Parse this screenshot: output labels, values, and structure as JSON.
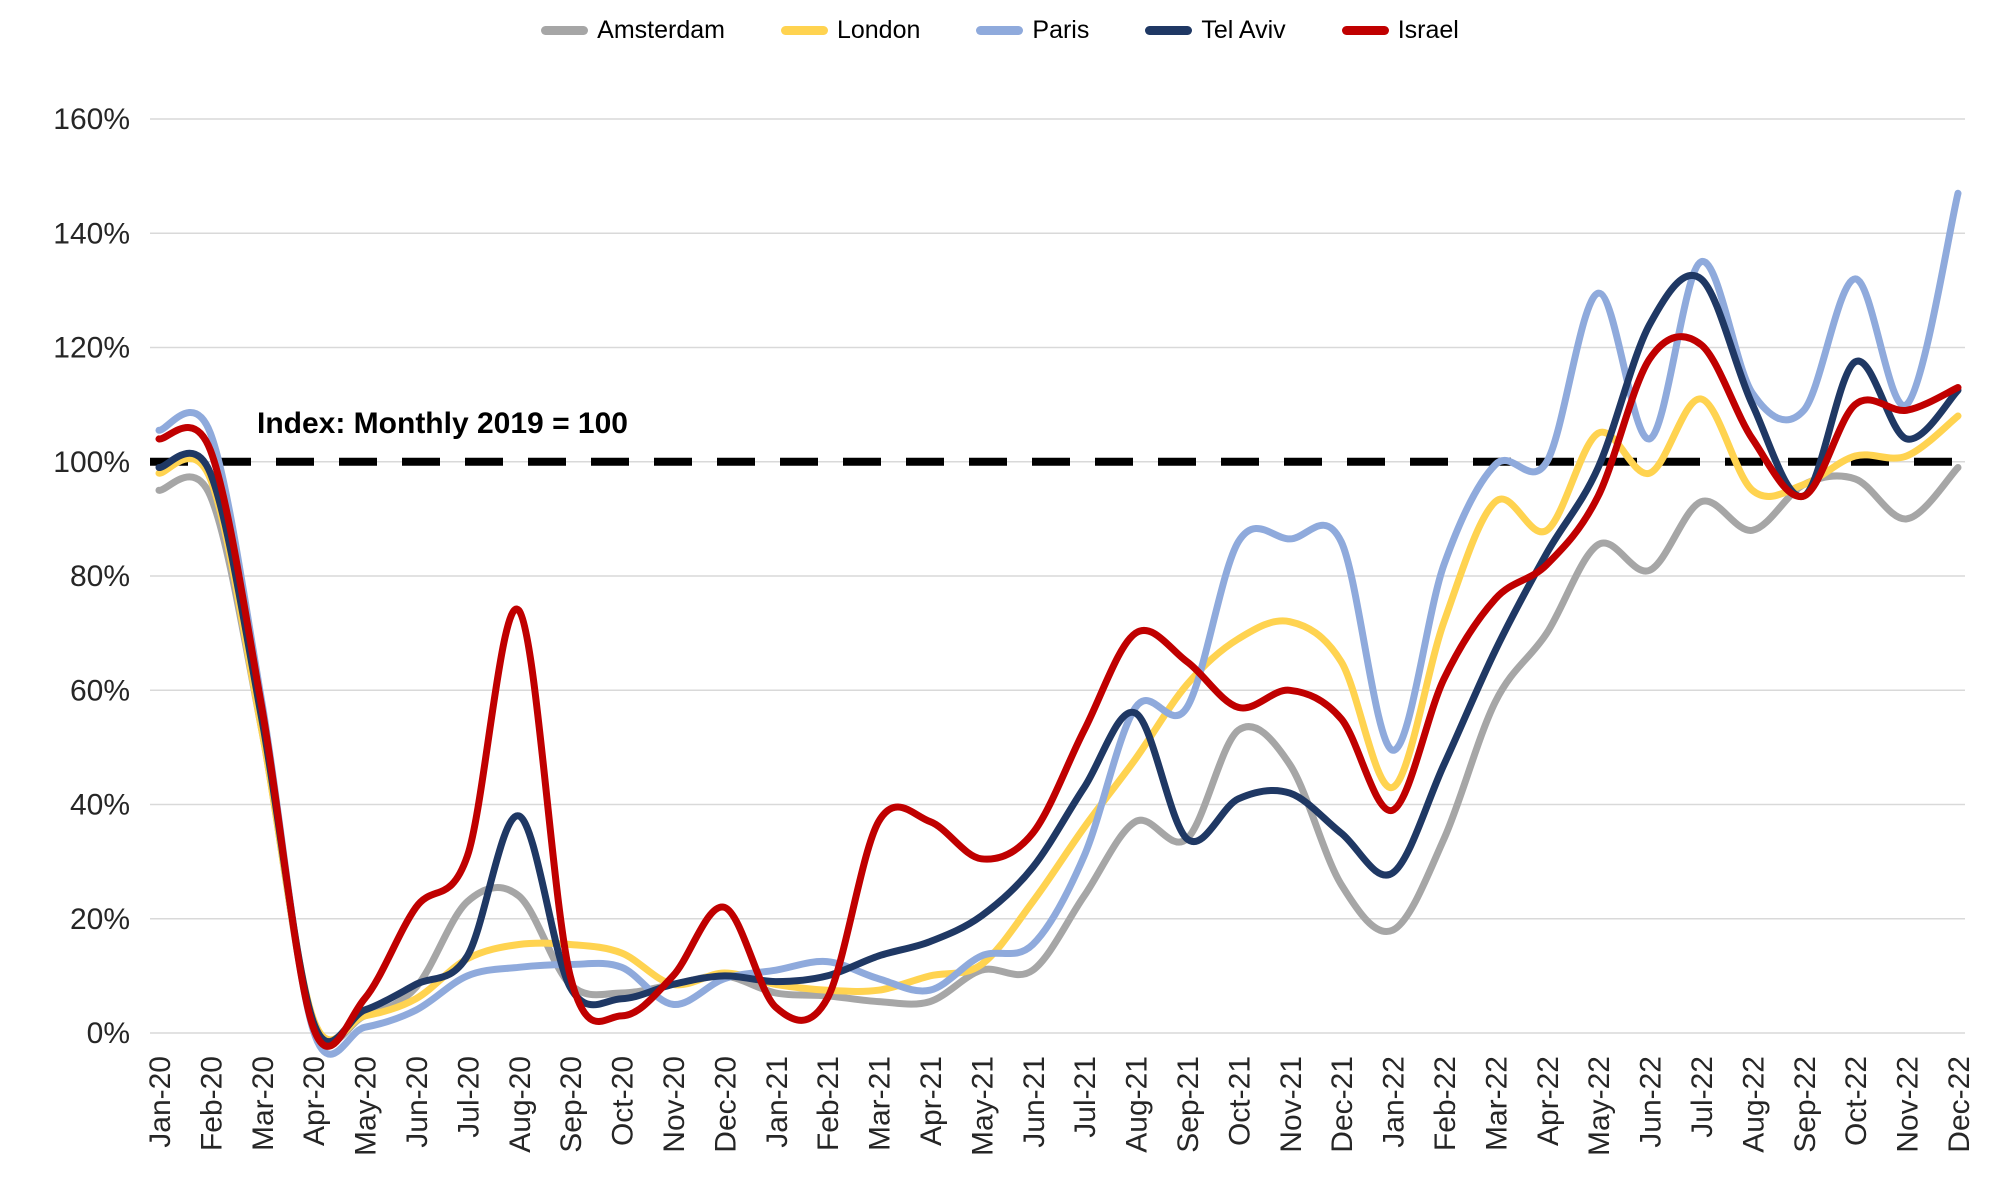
{
  "chart_data": {
    "type": "line",
    "title": "",
    "annotation": "Index: Monthly 2019 = 100",
    "legend_position": "top",
    "grid": true,
    "x_categories": [
      "Jan-20",
      "Feb-20",
      "Mar-20",
      "Apr-20",
      "May-20",
      "Jun-20",
      "Jul-20",
      "Aug-20",
      "Sep-20",
      "Oct-20",
      "Nov-20",
      "Dec-20",
      "Jan-21",
      "Feb-21",
      "Mar-21",
      "Apr-21",
      "May-21",
      "Jun-21",
      "Jul-21",
      "Aug-21",
      "Sep-21",
      "Oct-21",
      "Nov-21",
      "Dec-21",
      "Jan-22",
      "Feb-22",
      "Mar-22",
      "Apr-22",
      "May-22",
      "Jun-22",
      "Jul-22",
      "Aug-22",
      "Sep-22",
      "Oct-22",
      "Nov-22",
      "Dec-22"
    ],
    "y_axis": {
      "min": 0,
      "max": 160,
      "step": 20,
      "tick_labels": [
        "0%",
        "20%",
        "40%",
        "60%",
        "80%",
        "100%",
        "120%",
        "140%",
        "160%"
      ]
    },
    "reference_line": {
      "value": 100,
      "style": "dashed",
      "color": "#000000"
    },
    "series": [
      {
        "name": "Amsterdam",
        "color": "#A6A6A6",
        "values": [
          95,
          94,
          53,
          2,
          3,
          8,
          23,
          24,
          8.5,
          7,
          8.5,
          10,
          7,
          6.5,
          5.5,
          5.5,
          11,
          11,
          24,
          37,
          34,
          53,
          47,
          26,
          18,
          34,
          58,
          70,
          85.5,
          81,
          93,
          88,
          96,
          97,
          90,
          99
        ]
      },
      {
        "name": "London",
        "color": "#FFD350",
        "values": [
          98,
          97,
          53,
          2.5,
          3,
          6,
          13,
          15.5,
          15.5,
          14,
          8.5,
          10.5,
          8.5,
          7.5,
          7.5,
          10,
          12,
          23,
          36,
          48,
          61,
          69,
          72,
          65,
          43,
          72,
          93,
          88,
          105,
          98,
          111,
          95,
          96,
          101,
          101,
          108
        ]
      },
      {
        "name": "Paris",
        "color": "#8FAADC",
        "values": [
          105.5,
          105,
          58,
          0.5,
          1,
          4,
          10,
          11.5,
          12,
          11.5,
          5,
          9.5,
          11,
          12.5,
          9.5,
          7.5,
          13.5,
          15.5,
          31,
          57,
          57,
          86,
          86.5,
          86,
          49.5,
          82,
          99.5,
          100,
          129.5,
          104,
          135,
          112,
          109,
          132,
          110,
          147
        ]
      },
      {
        "name": "Tel Aviv",
        "color": "#1F3864",
        "values": [
          99,
          98,
          55,
          2,
          4,
          8.5,
          13.5,
          38,
          8,
          6,
          8.5,
          10,
          9,
          10,
          13.5,
          16,
          20.5,
          29,
          43,
          56,
          34,
          41,
          42,
          35,
          28,
          47,
          67,
          84,
          99,
          124,
          132,
          110,
          94,
          117.5,
          104,
          112.5
        ]
      },
      {
        "name": "Israel",
        "color": "#C00000",
        "values": [
          104,
          102,
          57,
          1,
          6,
          22,
          31,
          74,
          10,
          3,
          10,
          22,
          4.5,
          6,
          37,
          37,
          30.5,
          35,
          53,
          70,
          65,
          57,
          60,
          55,
          39,
          62,
          76,
          82,
          94,
          118,
          120.5,
          104,
          94,
          110,
          109,
          113
        ]
      }
    ]
  },
  "layout_colors": {
    "gridline": "#d9d9d9",
    "tick_text": "#262626"
  }
}
